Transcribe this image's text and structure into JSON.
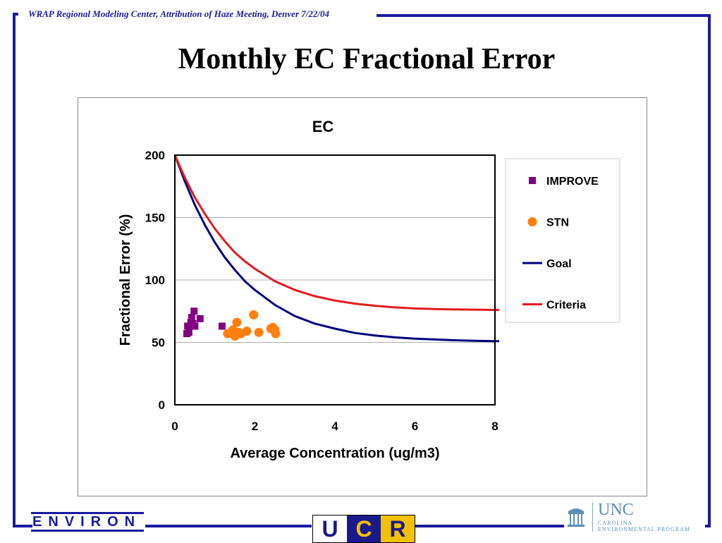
{
  "header": {
    "meeting": "WRAP Regional Modeling Center, Attribution of Haze Meeting, Denver 7/22/04"
  },
  "slide": {
    "title": "Monthly EC Fractional Error"
  },
  "logos": {
    "environ": "ENVIRON",
    "ucr_u": "U",
    "ucr_c": "C",
    "ucr_r": "R",
    "unc": "UNC",
    "unc_sub1": "CAROLINA",
    "unc_sub2": "ENVIRONMENTAL PROGRAM"
  },
  "colors": {
    "frame": "#1a1aa0",
    "improve": "#800080",
    "stn": "#ff7f0e",
    "goal": "#000080",
    "criteria": "#e31a1c"
  },
  "chart_data": {
    "type": "scatter",
    "title": "EC",
    "xlabel": "Average Concentration (ug/m3)",
    "ylabel": "Fractional Error (%)",
    "xlim": [
      0,
      8
    ],
    "ylim": [
      0,
      200
    ],
    "x_ticks": [
      "0",
      "2",
      "4",
      "6",
      "8"
    ],
    "y_ticks": [
      "0",
      "50",
      "100",
      "150",
      "200"
    ],
    "grid": "horizontal",
    "legend_position": "right",
    "series": [
      {
        "name": "IMPROVE",
        "kind": "points",
        "marker": "square",
        "color": "#800080",
        "points": [
          [
            0.3,
            57
          ],
          [
            0.35,
            58
          ],
          [
            0.32,
            63
          ],
          [
            0.38,
            63
          ],
          [
            0.4,
            66
          ],
          [
            0.42,
            70
          ],
          [
            0.45,
            65
          ],
          [
            0.48,
            75
          ],
          [
            0.5,
            63
          ],
          [
            0.63,
            69
          ],
          [
            1.18,
            63
          ]
        ]
      },
      {
        "name": "STN",
        "kind": "points",
        "marker": "circle",
        "color": "#ff7f0e",
        "points": [
          [
            1.32,
            57
          ],
          [
            1.45,
            60
          ],
          [
            1.5,
            55
          ],
          [
            1.55,
            66
          ],
          [
            1.6,
            58
          ],
          [
            1.65,
            57
          ],
          [
            1.8,
            59
          ],
          [
            1.97,
            72
          ],
          [
            2.1,
            58
          ],
          [
            2.4,
            61
          ],
          [
            2.45,
            62
          ],
          [
            2.5,
            60
          ],
          [
            2.52,
            57
          ]
        ]
      },
      {
        "name": "Goal",
        "kind": "line",
        "color": "#000080",
        "points": [
          [
            0,
            200
          ],
          [
            0.25,
            179
          ],
          [
            0.5,
            160
          ],
          [
            0.75,
            144
          ],
          [
            1,
            130
          ],
          [
            1.25,
            118
          ],
          [
            1.5,
            108
          ],
          [
            1.75,
            99
          ],
          [
            2,
            92
          ],
          [
            2.5,
            80
          ],
          [
            3,
            71
          ],
          [
            3.5,
            65
          ],
          [
            4,
            61
          ],
          [
            4.5,
            57.5
          ],
          [
            5,
            55.5
          ],
          [
            5.5,
            54
          ],
          [
            6,
            53
          ],
          [
            6.5,
            52.3
          ],
          [
            7,
            51.7
          ],
          [
            7.5,
            51.3
          ],
          [
            8,
            51
          ]
        ]
      },
      {
        "name": "Criteria",
        "kind": "line",
        "color": "#e31a1c",
        "points": [
          [
            0,
            200
          ],
          [
            0.25,
            182
          ],
          [
            0.5,
            166
          ],
          [
            0.75,
            153
          ],
          [
            1,
            141
          ],
          [
            1.25,
            131
          ],
          [
            1.5,
            122
          ],
          [
            1.75,
            115
          ],
          [
            2,
            109
          ],
          [
            2.5,
            99
          ],
          [
            3,
            92
          ],
          [
            3.5,
            87
          ],
          [
            4,
            83.5
          ],
          [
            4.5,
            81
          ],
          [
            5,
            79.3
          ],
          [
            5.5,
            78
          ],
          [
            6,
            77.2
          ],
          [
            6.5,
            76.7
          ],
          [
            7,
            76.4
          ],
          [
            7.5,
            76.2
          ],
          [
            8,
            76
          ]
        ]
      }
    ]
  }
}
